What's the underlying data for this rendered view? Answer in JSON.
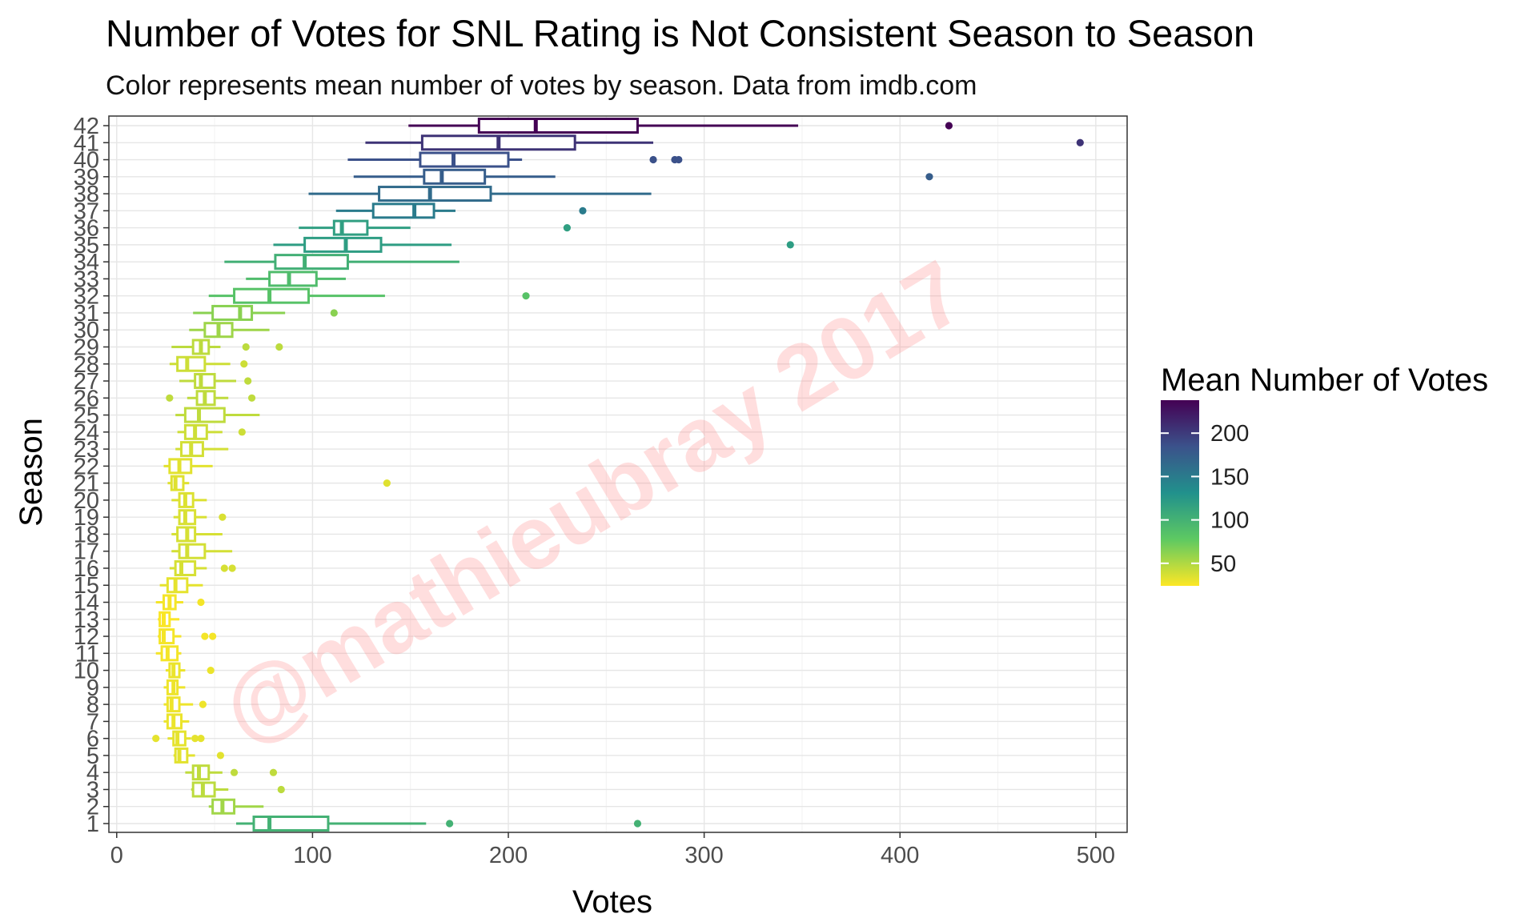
{
  "chart_data": {
    "type": "boxplot",
    "title": "Number of Votes for SNL Rating is Not Consistent Season to Season",
    "subtitle": "Color represents mean number of votes by season. Data from imdb.com",
    "xlabel": "Votes",
    "ylabel": "Season",
    "xlim": [
      -4,
      516
    ],
    "x_ticks": [
      0,
      100,
      200,
      300,
      400,
      500
    ],
    "grid": true,
    "legend": {
      "title": "Mean Number of Votes",
      "placement": "right",
      "ticks": [
        50,
        100,
        150,
        200
      ],
      "range": [
        24,
        238
      ]
    },
    "colorscale": [
      "#fde725",
      "#5ec962",
      "#21918c",
      "#3b528b",
      "#440154"
    ],
    "watermark": "@mathieubray 2017",
    "series": [
      {
        "season": "1",
        "mean": 100,
        "whisker_low": 61,
        "q1": 70,
        "median": 78,
        "q3": 108,
        "whisker_high": 158,
        "outliers": [
          170,
          266
        ]
      },
      {
        "season": "2",
        "mean": 55,
        "whisker_low": 47,
        "q1": 49,
        "median": 54,
        "q3": 60,
        "whisker_high": 75,
        "outliers": []
      },
      {
        "season": "3",
        "mean": 46,
        "whisker_low": 38,
        "q1": 39,
        "median": 44,
        "q3": 50,
        "whisker_high": 57,
        "outliers": [
          84
        ]
      },
      {
        "season": "4",
        "mean": 45,
        "whisker_low": 35,
        "q1": 39,
        "median": 42,
        "q3": 47,
        "whisker_high": 54,
        "outliers": [
          60,
          80
        ]
      },
      {
        "season": "5",
        "mean": 33,
        "whisker_low": 29,
        "q1": 30,
        "median": 32,
        "q3": 36,
        "whisker_high": 40,
        "outliers": [
          53
        ]
      },
      {
        "season": "6",
        "mean": 32,
        "whisker_low": 26,
        "q1": 29,
        "median": 31,
        "q3": 35,
        "whisker_high": 38,
        "outliers": [
          20,
          40,
          43
        ]
      },
      {
        "season": "7",
        "mean": 30,
        "whisker_low": 24,
        "q1": 26,
        "median": 29,
        "q3": 33,
        "whisker_high": 37,
        "outliers": []
      },
      {
        "season": "8",
        "mean": 29,
        "whisker_low": 24,
        "q1": 26,
        "median": 28,
        "q3": 32,
        "whisker_high": 39,
        "outliers": [
          44
        ]
      },
      {
        "season": "9",
        "mean": 29,
        "whisker_low": 24,
        "q1": 26,
        "median": 29,
        "q3": 31,
        "whisker_high": 35,
        "outliers": []
      },
      {
        "season": "10",
        "mean": 30,
        "whisker_low": 25,
        "q1": 27,
        "median": 29,
        "q3": 32,
        "whisker_high": 35,
        "outliers": [
          48
        ]
      },
      {
        "season": "11",
        "mean": 27,
        "whisker_low": 20,
        "q1": 23,
        "median": 26,
        "q3": 31,
        "whisker_high": 33,
        "outliers": []
      },
      {
        "season": "12",
        "mean": 27,
        "whisker_low": 21,
        "q1": 22,
        "median": 24,
        "q3": 29,
        "whisker_high": 33,
        "outliers": [
          45,
          49
        ]
      },
      {
        "season": "13",
        "mean": 25,
        "whisker_low": 21,
        "q1": 22,
        "median": 24,
        "q3": 27,
        "whisker_high": 32,
        "outliers": []
      },
      {
        "season": "14",
        "mean": 27,
        "whisker_low": 20,
        "q1": 24,
        "median": 27,
        "q3": 30,
        "whisker_high": 34,
        "outliers": [
          43
        ]
      },
      {
        "season": "15",
        "mean": 32,
        "whisker_low": 22,
        "q1": 26,
        "median": 30,
        "q3": 36,
        "whisker_high": 44,
        "outliers": []
      },
      {
        "season": "16",
        "mean": 37,
        "whisker_low": 27,
        "q1": 30,
        "median": 33,
        "q3": 40,
        "whisker_high": 46,
        "outliers": [
          55,
          59
        ]
      },
      {
        "season": "17",
        "mean": 38,
        "whisker_low": 28,
        "q1": 32,
        "median": 36,
        "q3": 45,
        "whisker_high": 59,
        "outliers": []
      },
      {
        "season": "18",
        "mean": 37,
        "whisker_low": 28,
        "q1": 31,
        "median": 36,
        "q3": 40,
        "whisker_high": 54,
        "outliers": []
      },
      {
        "season": "19",
        "mean": 36,
        "whisker_low": 29,
        "q1": 32,
        "median": 35,
        "q3": 40,
        "whisker_high": 46,
        "outliers": [
          54
        ]
      },
      {
        "season": "20",
        "mean": 35,
        "whisker_low": 28,
        "q1": 32,
        "median": 35,
        "q3": 39,
        "whisker_high": 46,
        "outliers": []
      },
      {
        "season": "21",
        "mean": 34,
        "whisker_low": 26,
        "q1": 28,
        "median": 30,
        "q3": 34,
        "whisker_high": 37,
        "outliers": [
          138
        ]
      },
      {
        "season": "22",
        "mean": 33,
        "whisker_low": 24,
        "q1": 27,
        "median": 32,
        "q3": 38,
        "whisker_high": 49,
        "outliers": []
      },
      {
        "season": "23",
        "mean": 38,
        "whisker_low": 30,
        "q1": 33,
        "median": 38,
        "q3": 44,
        "whisker_high": 57,
        "outliers": []
      },
      {
        "season": "24",
        "mean": 40,
        "whisker_low": 31,
        "q1": 35,
        "median": 40,
        "q3": 46,
        "whisker_high": 54,
        "outliers": [
          64
        ]
      },
      {
        "season": "25",
        "mean": 45,
        "whisker_low": 30,
        "q1": 35,
        "median": 42,
        "q3": 55,
        "whisker_high": 73,
        "outliers": []
      },
      {
        "season": "26",
        "mean": 45,
        "whisker_low": 36,
        "q1": 41,
        "median": 45,
        "q3": 50,
        "whisker_high": 57,
        "outliers": [
          27,
          69
        ]
      },
      {
        "season": "27",
        "mean": 45,
        "whisker_low": 32,
        "q1": 40,
        "median": 43,
        "q3": 50,
        "whisker_high": 61,
        "outliers": [
          67
        ]
      },
      {
        "season": "28",
        "mean": 40,
        "whisker_low": 27,
        "q1": 31,
        "median": 36,
        "q3": 45,
        "whisker_high": 58,
        "outliers": [
          65
        ]
      },
      {
        "season": "29",
        "mean": 46,
        "whisker_low": 28,
        "q1": 39,
        "median": 43,
        "q3": 47,
        "whisker_high": 53,
        "outliers": [
          66,
          83
        ]
      },
      {
        "season": "30",
        "mean": 56,
        "whisker_low": 37,
        "q1": 45,
        "median": 52,
        "q3": 59,
        "whisker_high": 78,
        "outliers": []
      },
      {
        "season": "31",
        "mean": 63,
        "whisker_low": 39,
        "q1": 49,
        "median": 63,
        "q3": 69,
        "whisker_high": 86,
        "outliers": [
          111
        ]
      },
      {
        "season": "32",
        "mean": 84,
        "whisker_low": 47,
        "q1": 60,
        "median": 78,
        "q3": 98,
        "whisker_high": 137,
        "outliers": [
          209
        ]
      },
      {
        "season": "33",
        "mean": 90,
        "whisker_low": 66,
        "q1": 78,
        "median": 88,
        "q3": 102,
        "whisker_high": 117,
        "outliers": []
      },
      {
        "season": "34",
        "mean": 102,
        "whisker_low": 55,
        "q1": 81,
        "median": 96,
        "q3": 118,
        "whisker_high": 175,
        "outliers": []
      },
      {
        "season": "35",
        "mean": 120,
        "whisker_low": 80,
        "q1": 96,
        "median": 117,
        "q3": 135,
        "whisker_high": 171,
        "outliers": [
          344
        ]
      },
      {
        "season": "36",
        "mean": 118,
        "whisker_low": 93,
        "q1": 111,
        "median": 115,
        "q3": 128,
        "whisker_high": 150,
        "outliers": [
          230
        ]
      },
      {
        "season": "37",
        "mean": 150,
        "whisker_low": 112,
        "q1": 131,
        "median": 152,
        "q3": 162,
        "whisker_high": 173,
        "outliers": [
          238
        ]
      },
      {
        "season": "38",
        "mean": 163,
        "whisker_low": 98,
        "q1": 134,
        "median": 160,
        "q3": 191,
        "whisker_high": 273,
        "outliers": []
      },
      {
        "season": "39",
        "mean": 175,
        "whisker_low": 121,
        "q1": 157,
        "median": 166,
        "q3": 188,
        "whisker_high": 224,
        "outliers": [
          415
        ]
      },
      {
        "season": "40",
        "mean": 185,
        "whisker_low": 118,
        "q1": 155,
        "median": 172,
        "q3": 200,
        "whisker_high": 207,
        "outliers": [
          274,
          285,
          287
        ]
      },
      {
        "season": "41",
        "mean": 205,
        "whisker_low": 127,
        "q1": 156,
        "median": 195,
        "q3": 234,
        "whisker_high": 274,
        "outliers": [
          492
        ]
      },
      {
        "season": "42",
        "mean": 238,
        "whisker_low": 149,
        "q1": 185,
        "median": 214,
        "q3": 266,
        "whisker_high": 348,
        "outliers": [
          425
        ]
      }
    ]
  }
}
